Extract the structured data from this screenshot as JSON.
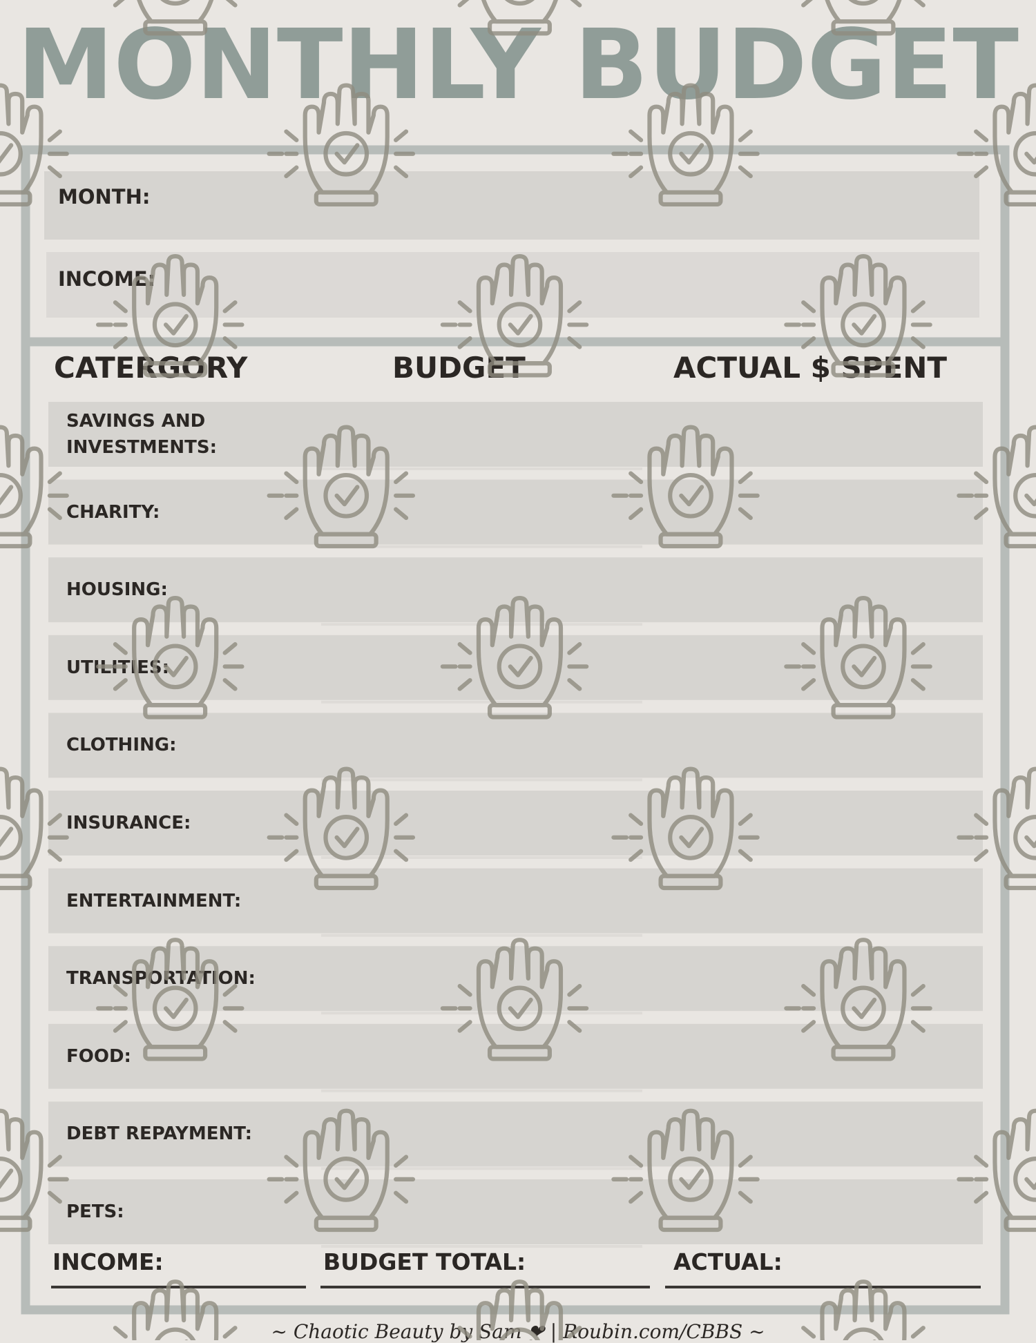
{
  "header": {
    "title": "MONTHLY BUDGET"
  },
  "fields": [
    {
      "label": "MONTH:"
    },
    {
      "label": "INCOME:"
    }
  ],
  "table": {
    "columns": [
      "CATERGORY",
      "BUDGET",
      "ACTUAL $ SPENT"
    ],
    "rows": [
      "SAVINGS AND INVESTMENTS:",
      "CHARITY:",
      "HOUSING:",
      "UTILITIES:",
      "CLOTHING:",
      "INSURANCE:",
      "ENTERTAINMENT:",
      "TRANSPORTATION:",
      "FOOD:",
      "DEBT REPAYMENT:",
      "PETS:"
    ]
  },
  "totals": [
    "INCOME:",
    "BUDGET TOTAL:",
    "ACTUAL:"
  ],
  "footer": "~ Chaotic Beauty by Sam ❤ | Roubin.com/CBBS ~"
}
